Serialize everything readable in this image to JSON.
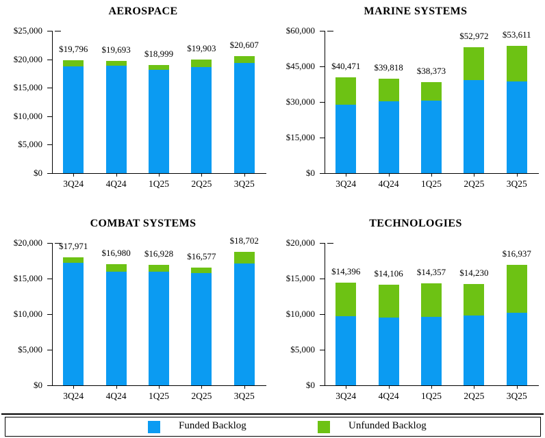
{
  "page": {
    "background": "#ffffff"
  },
  "colors": {
    "funded": "#0B9BF2",
    "unfunded": "#6DC214",
    "axis": "#000000",
    "text": "#000000"
  },
  "legend": {
    "items": [
      {
        "name": "funded",
        "label": "Funded Backlog"
      },
      {
        "name": "unfunded",
        "label": "Unfunded Backlog"
      }
    ]
  },
  "chart_data": [
    {
      "id": "aerospace",
      "type": "bar",
      "stacked": true,
      "title": "AEROSPACE",
      "categories": [
        "3Q24",
        "4Q24",
        "1Q25",
        "2Q25",
        "3Q25"
      ],
      "series": [
        {
          "name": "Funded Backlog",
          "color_key": "funded",
          "values": [
            18800,
            18900,
            18100,
            18600,
            19400
          ]
        },
        {
          "name": "Unfunded Backlog",
          "color_key": "unfunded",
          "values": [
            996,
            793,
            899,
            1303,
            1207
          ]
        }
      ],
      "totals": [
        19796,
        19693,
        18999,
        19903,
        20607
      ],
      "total_labels": [
        "$19,796",
        "$19,693",
        "$18,999",
        "$19,903",
        "$20,607"
      ],
      "ylim": [
        0,
        25000
      ],
      "ytick_step": 5000,
      "ytick_labels": [
        "$0",
        "$5,000",
        "$10,000",
        "$15,000",
        "$20,000",
        "$25,000"
      ],
      "grid": false,
      "legend_position": "shared-bottom"
    },
    {
      "id": "marine-systems",
      "type": "bar",
      "stacked": true,
      "title": "MARINE SYSTEMS",
      "categories": [
        "3Q24",
        "4Q24",
        "1Q25",
        "2Q25",
        "3Q25"
      ],
      "series": [
        {
          "name": "Funded Backlog",
          "color_key": "funded",
          "values": [
            28700,
            30300,
            30700,
            39100,
            38700
          ]
        },
        {
          "name": "Unfunded Backlog",
          "color_key": "unfunded",
          "values": [
            11771,
            9518,
            7673,
            13872,
            14911
          ]
        }
      ],
      "totals": [
        40471,
        39818,
        38373,
        52972,
        53611
      ],
      "total_labels": [
        "$40,471",
        "$39,818",
        "$38,373",
        "$52,972",
        "$53,611"
      ],
      "ylim": [
        0,
        60000
      ],
      "ytick_step": 15000,
      "ytick_labels": [
        "$0",
        "$15,000",
        "$30,000",
        "$45,000",
        "$60,000"
      ],
      "grid": false,
      "legend_position": "shared-bottom"
    },
    {
      "id": "combat-systems",
      "type": "bar",
      "stacked": true,
      "title": "COMBAT SYSTEMS",
      "categories": [
        "3Q24",
        "4Q24",
        "1Q25",
        "2Q25",
        "3Q25"
      ],
      "series": [
        {
          "name": "Funded Backlog",
          "color_key": "funded",
          "values": [
            17200,
            16000,
            16000,
            15800,
            17100
          ]
        },
        {
          "name": "Unfunded Backlog",
          "color_key": "unfunded",
          "values": [
            771,
            980,
            928,
            777,
            1602
          ]
        }
      ],
      "totals": [
        17971,
        16980,
        16928,
        16577,
        18702
      ],
      "total_labels": [
        "$17,971",
        "$16,980",
        "$16,928",
        "$16,577",
        "$18,702"
      ],
      "ylim": [
        0,
        20000
      ],
      "ytick_step": 5000,
      "ytick_labels": [
        "$0",
        "$5,000",
        "$10,000",
        "$15,000",
        "$20,000"
      ],
      "grid": false,
      "legend_position": "shared-bottom"
    },
    {
      "id": "technologies",
      "type": "bar",
      "stacked": true,
      "title": "TECHNOLOGIES",
      "categories": [
        "3Q24",
        "4Q24",
        "1Q25",
        "2Q25",
        "3Q25"
      ],
      "series": [
        {
          "name": "Funded Backlog",
          "color_key": "funded",
          "values": [
            9700,
            9500,
            9600,
            9800,
            10200
          ]
        },
        {
          "name": "Unfunded Backlog",
          "color_key": "unfunded",
          "values": [
            4696,
            4606,
            4757,
            4430,
            6737
          ]
        }
      ],
      "totals": [
        14396,
        14106,
        14357,
        14230,
        16937
      ],
      "total_labels": [
        "$14,396",
        "$14,106",
        "$14,357",
        "$14,230",
        "$16,937"
      ],
      "ylim": [
        0,
        20000
      ],
      "ytick_step": 5000,
      "ytick_labels": [
        "$0",
        "$5,000",
        "$10,000",
        "$15,000",
        "$20,000"
      ],
      "grid": false,
      "legend_position": "shared-bottom"
    }
  ]
}
